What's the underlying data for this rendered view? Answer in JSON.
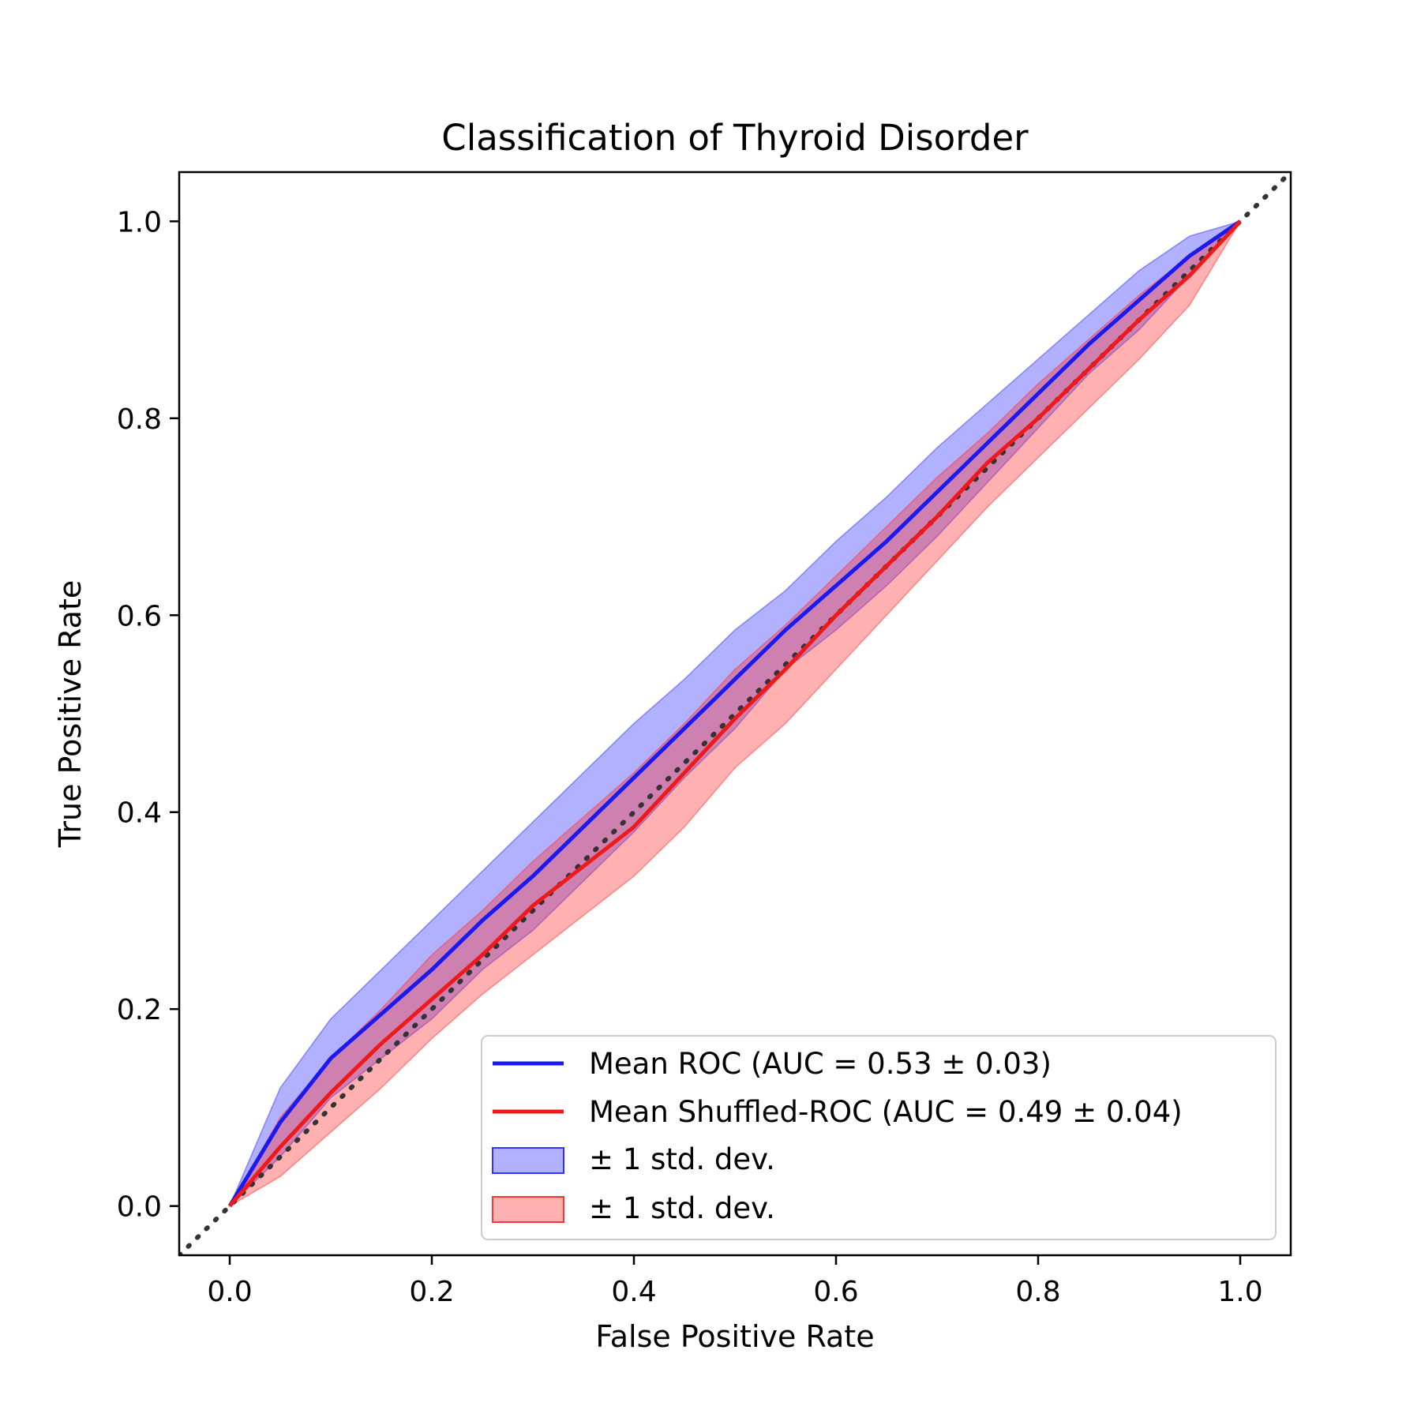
{
  "chart_data": {
    "type": "line",
    "title": "Classification of Thyroid Disorder",
    "xlabel": "False Positive Rate",
    "ylabel": "True Positive Rate",
    "xlim": [
      -0.05,
      1.05
    ],
    "ylim": [
      -0.05,
      1.05
    ],
    "xticks": [
      "0.0",
      "0.2",
      "0.4",
      "0.6",
      "0.8",
      "1.0"
    ],
    "yticks": [
      "0.0",
      "0.2",
      "0.4",
      "0.6",
      "0.8",
      "1.0"
    ],
    "grid": false,
    "legend_position": "lower-right",
    "x": [
      0.0,
      0.05,
      0.1,
      0.15,
      0.2,
      0.25,
      0.3,
      0.35,
      0.4,
      0.45,
      0.5,
      0.55,
      0.6,
      0.65,
      0.7,
      0.75,
      0.8,
      0.85,
      0.9,
      0.95,
      1.0
    ],
    "series": [
      {
        "name": "Mean ROC (AUC = 0.53 ± 0.03)",
        "color": "#1a1aee",
        "values": [
          0.0,
          0.085,
          0.15,
          0.195,
          0.24,
          0.29,
          0.335,
          0.385,
          0.435,
          0.485,
          0.535,
          0.585,
          0.63,
          0.675,
          0.725,
          0.775,
          0.825,
          0.875,
          0.92,
          0.965,
          1.0
        ],
        "band_label": "± 1 std. dev.",
        "band_color": "#3333ff",
        "band_upper": [
          0.0,
          0.12,
          0.19,
          0.24,
          0.29,
          0.34,
          0.39,
          0.44,
          0.49,
          0.535,
          0.585,
          0.625,
          0.675,
          0.72,
          0.77,
          0.815,
          0.86,
          0.905,
          0.95,
          0.985,
          1.0
        ],
        "band_lower": [
          0.0,
          0.05,
          0.11,
          0.15,
          0.19,
          0.24,
          0.28,
          0.33,
          0.38,
          0.435,
          0.485,
          0.545,
          0.585,
          0.63,
          0.68,
          0.735,
          0.79,
          0.845,
          0.89,
          0.945,
          1.0
        ]
      },
      {
        "name": "Mean Shuffled-ROC (AUC = 0.49 ± 0.04)",
        "color": "#ee1a1a",
        "values": [
          0.0,
          0.06,
          0.115,
          0.165,
          0.21,
          0.255,
          0.305,
          0.345,
          0.385,
          0.44,
          0.495,
          0.545,
          0.6,
          0.65,
          0.7,
          0.755,
          0.8,
          0.85,
          0.9,
          0.945,
          1.0
        ],
        "band_label": "± 1 std. dev.",
        "band_color": "#ff3333",
        "band_upper": [
          0.0,
          0.09,
          0.15,
          0.2,
          0.255,
          0.3,
          0.35,
          0.395,
          0.44,
          0.49,
          0.545,
          0.59,
          0.64,
          0.69,
          0.74,
          0.785,
          0.835,
          0.88,
          0.925,
          0.965,
          1.0
        ],
        "band_lower": [
          0.0,
          0.03,
          0.075,
          0.12,
          0.17,
          0.215,
          0.255,
          0.295,
          0.335,
          0.385,
          0.445,
          0.49,
          0.545,
          0.6,
          0.655,
          0.71,
          0.76,
          0.81,
          0.86,
          0.915,
          1.0
        ]
      }
    ],
    "reference_line": {
      "x": [
        -0.05,
        1.05
      ],
      "y": [
        -0.05,
        1.05
      ],
      "color": "#333333",
      "style": "dotted"
    },
    "legend": {
      "entries": [
        "Mean ROC (AUC = 0.53 ± 0.03)",
        "Mean Shuffled-ROC (AUC = 0.49 ± 0.04)",
        "± 1 std. dev.",
        "± 1 std. dev."
      ]
    }
  }
}
